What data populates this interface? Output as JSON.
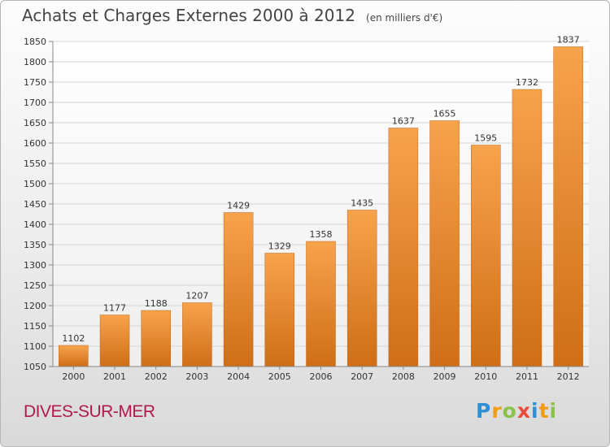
{
  "header": {
    "title": "Achats et Charges Externes 2000 à 2012",
    "unit": "(en milliers d'€)"
  },
  "footer": {
    "place": "DIVES-SUR-MER",
    "brand": {
      "letters": [
        "P",
        "r",
        "o",
        "x",
        "i",
        "t",
        "i"
      ],
      "colors": [
        "#2e8fd4",
        "#f39c12",
        "#8bc34a",
        "#e74c3c",
        "#2e8fd4",
        "#f39c12",
        "#8bc34a"
      ]
    }
  },
  "chart_data": {
    "type": "bar",
    "title": "Achats et Charges Externes 2000 à 2012",
    "subtitle": "(en milliers d'€)",
    "categories": [
      "2000",
      "2001",
      "2002",
      "2003",
      "2004",
      "2005",
      "2006",
      "2007",
      "2008",
      "2009",
      "2010",
      "2011",
      "2012"
    ],
    "values": [
      1102,
      1177,
      1188,
      1207,
      1429,
      1329,
      1358,
      1435,
      1637,
      1655,
      1595,
      1732,
      1837
    ],
    "ylim": [
      1050,
      1850
    ],
    "yticks": [
      1050,
      1100,
      1150,
      1200,
      1250,
      1300,
      1350,
      1400,
      1450,
      1500,
      1550,
      1600,
      1650,
      1700,
      1750,
      1800,
      1850
    ],
    "grid": true,
    "bar_color_top": "#f7a34c",
    "bar_color_bottom": "#cf6e16",
    "xlabel": "",
    "ylabel": ""
  }
}
